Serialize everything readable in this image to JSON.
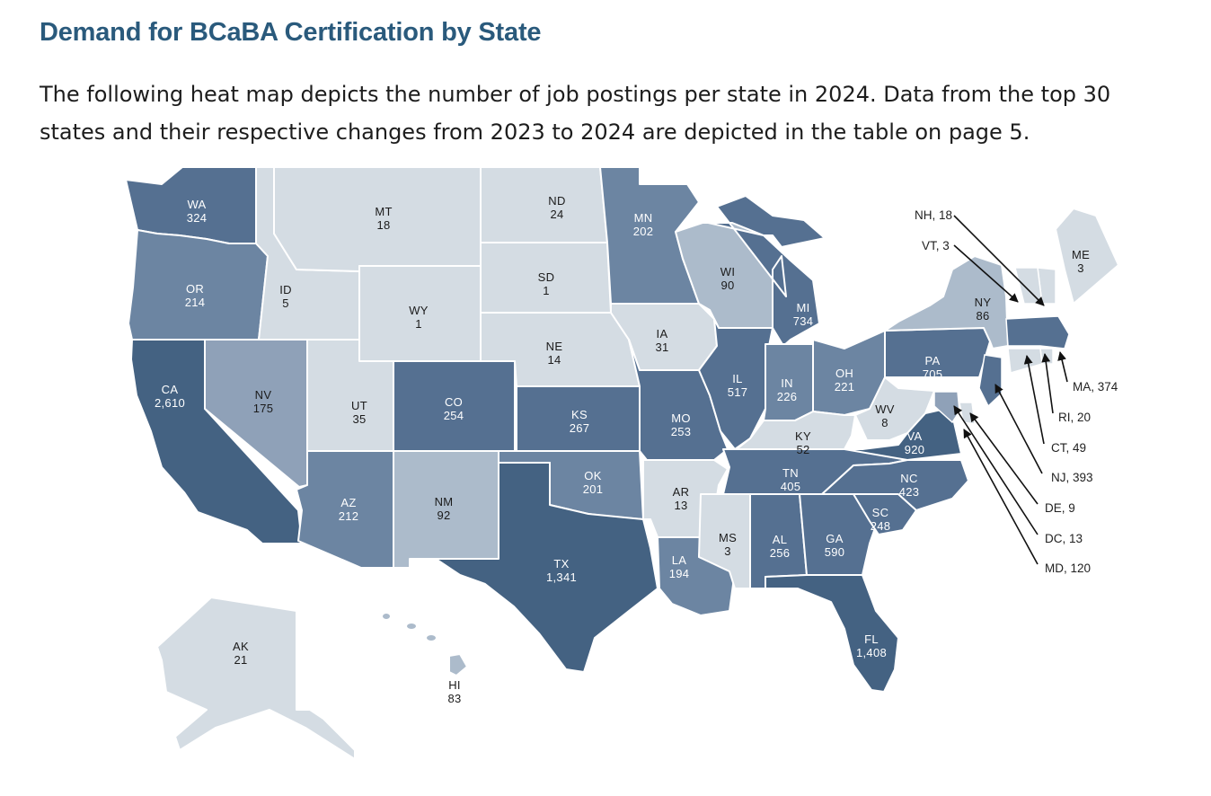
{
  "heading": "Demand for BCaBA Certification by State",
  "intro": "The following heat map depicts the number of job postings per state in 2024. Data from the top 30 states and their respective changes from 2023 to 2024 are depicted in the table on page 5.",
  "colors": {
    "darkest": "#446282",
    "dark": "#557091",
    "mid": "#6c85a2",
    "light": "#8fa1b8",
    "lighter": "#acbbcb",
    "lightest": "#d4dce3",
    "title": "#2a5a7c",
    "border": "#ffffff"
  },
  "chart_data": {
    "type": "map",
    "metric": "job postings",
    "year": "2024",
    "states": [
      {
        "abbr": "WA",
        "value": "324"
      },
      {
        "abbr": "OR",
        "value": "214"
      },
      {
        "abbr": "CA",
        "value": "2,610"
      },
      {
        "abbr": "NV",
        "value": "175"
      },
      {
        "abbr": "ID",
        "value": "5"
      },
      {
        "abbr": "MT",
        "value": "18"
      },
      {
        "abbr": "WY",
        "value": "1"
      },
      {
        "abbr": "UT",
        "value": "35"
      },
      {
        "abbr": "AZ",
        "value": "212"
      },
      {
        "abbr": "CO",
        "value": "254"
      },
      {
        "abbr": "NM",
        "value": "92"
      },
      {
        "abbr": "ND",
        "value": "24"
      },
      {
        "abbr": "SD",
        "value": "1"
      },
      {
        "abbr": "NE",
        "value": "14"
      },
      {
        "abbr": "KS",
        "value": "267"
      },
      {
        "abbr": "OK",
        "value": "201"
      },
      {
        "abbr": "TX",
        "value": "1,341"
      },
      {
        "abbr": "MN",
        "value": "202"
      },
      {
        "abbr": "IA",
        "value": "31"
      },
      {
        "abbr": "MO",
        "value": "253"
      },
      {
        "abbr": "AR",
        "value": "13"
      },
      {
        "abbr": "LA",
        "value": "194"
      },
      {
        "abbr": "WI",
        "value": "90"
      },
      {
        "abbr": "IL",
        "value": "517"
      },
      {
        "abbr": "MI",
        "value": "734"
      },
      {
        "abbr": "IN",
        "value": "226"
      },
      {
        "abbr": "OH",
        "value": "221"
      },
      {
        "abbr": "KY",
        "value": "52"
      },
      {
        "abbr": "TN",
        "value": "405"
      },
      {
        "abbr": "MS",
        "value": "3"
      },
      {
        "abbr": "AL",
        "value": "256"
      },
      {
        "abbr": "GA",
        "value": "590"
      },
      {
        "abbr": "FL",
        "value": "1,408"
      },
      {
        "abbr": "SC",
        "value": "248"
      },
      {
        "abbr": "NC",
        "value": "423"
      },
      {
        "abbr": "VA",
        "value": "920"
      },
      {
        "abbr": "WV",
        "value": "8"
      },
      {
        "abbr": "PA",
        "value": "705"
      },
      {
        "abbr": "NY",
        "value": "86"
      },
      {
        "abbr": "ME",
        "value": "3"
      },
      {
        "abbr": "AK",
        "value": "21"
      },
      {
        "abbr": "HI",
        "value": "83"
      }
    ],
    "callouts": [
      {
        "label": "NH, 18"
      },
      {
        "label": "VT, 3"
      },
      {
        "label": "MA, 374"
      },
      {
        "label": "RI, 20"
      },
      {
        "label": "CT, 49"
      },
      {
        "label": "NJ, 393"
      },
      {
        "label": "DE, 9"
      },
      {
        "label": "DC, 13"
      },
      {
        "label": "MD, 120"
      }
    ]
  }
}
